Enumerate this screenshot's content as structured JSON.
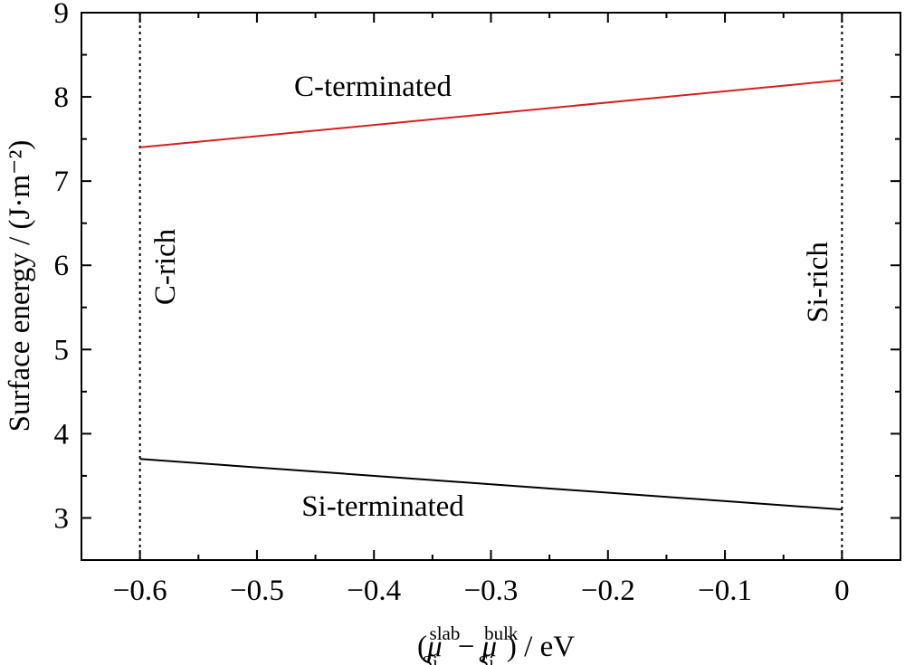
{
  "chart_data": {
    "type": "line",
    "title": "",
    "xlim": [
      -0.65,
      0.05
    ],
    "ylim": [
      2.5,
      9
    ],
    "x_ticks": [
      -0.6,
      -0.5,
      -0.4,
      -0.3,
      -0.2,
      -0.1,
      0
    ],
    "x_tick_labels": [
      "−0.6",
      "−0.5",
      "−0.4",
      "−0.3",
      "−0.2",
      "−0.1",
      "0"
    ],
    "y_ticks": [
      3,
      4,
      5,
      6,
      7,
      8,
      9
    ],
    "y_tick_labels": [
      "3",
      "4",
      "5",
      "6",
      "7",
      "8",
      "9"
    ],
    "grid": false,
    "ylabel": "Surface energy / (J·m⁻²)",
    "xlabel": {
      "open": "(",
      "mu": "μ",
      "slab_sup": "slab",
      "sub": "Si",
      "minus": "−",
      "bulk_sup": "bulk",
      "close": ") / eV"
    },
    "series": [
      {
        "name": "C-terminated",
        "color": "#d42020",
        "x": [
          -0.6,
          0
        ],
        "y": [
          7.4,
          8.2
        ]
      },
      {
        "name": "Si-terminated",
        "color": "#000000",
        "x": [
          -0.6,
          0
        ],
        "y": [
          3.7,
          3.1
        ]
      }
    ],
    "vlines": [
      {
        "x": -0.6,
        "label": "C-rich",
        "style": "dotted"
      },
      {
        "x": 0,
        "label": "Si-rich",
        "style": "dotted"
      }
    ]
  }
}
